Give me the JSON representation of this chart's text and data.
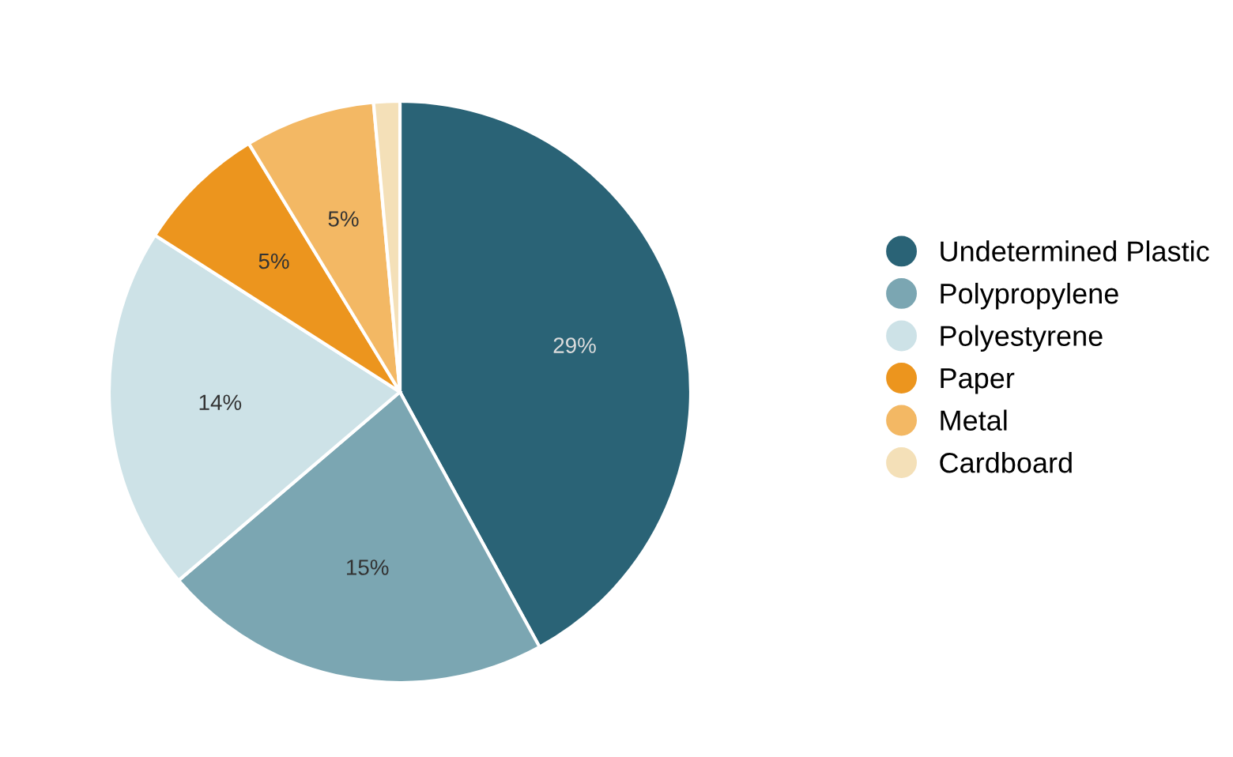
{
  "chart_data": {
    "type": "pie",
    "categories": [
      "Undetermined Plastic",
      "Polypropylene",
      "Polyestyrene",
      "Paper",
      "Metal",
      "Cardboard"
    ],
    "values": [
      29,
      15,
      14,
      5,
      5,
      1
    ],
    "value_labels": [
      "29%",
      "15%",
      "14%",
      "5%",
      "5%",
      null
    ],
    "colors": [
      "#2a6376",
      "#7ba6b2",
      "#cde2e7",
      "#ec951e",
      "#f3b864",
      "#f4e0b8"
    ],
    "legend": "right"
  }
}
